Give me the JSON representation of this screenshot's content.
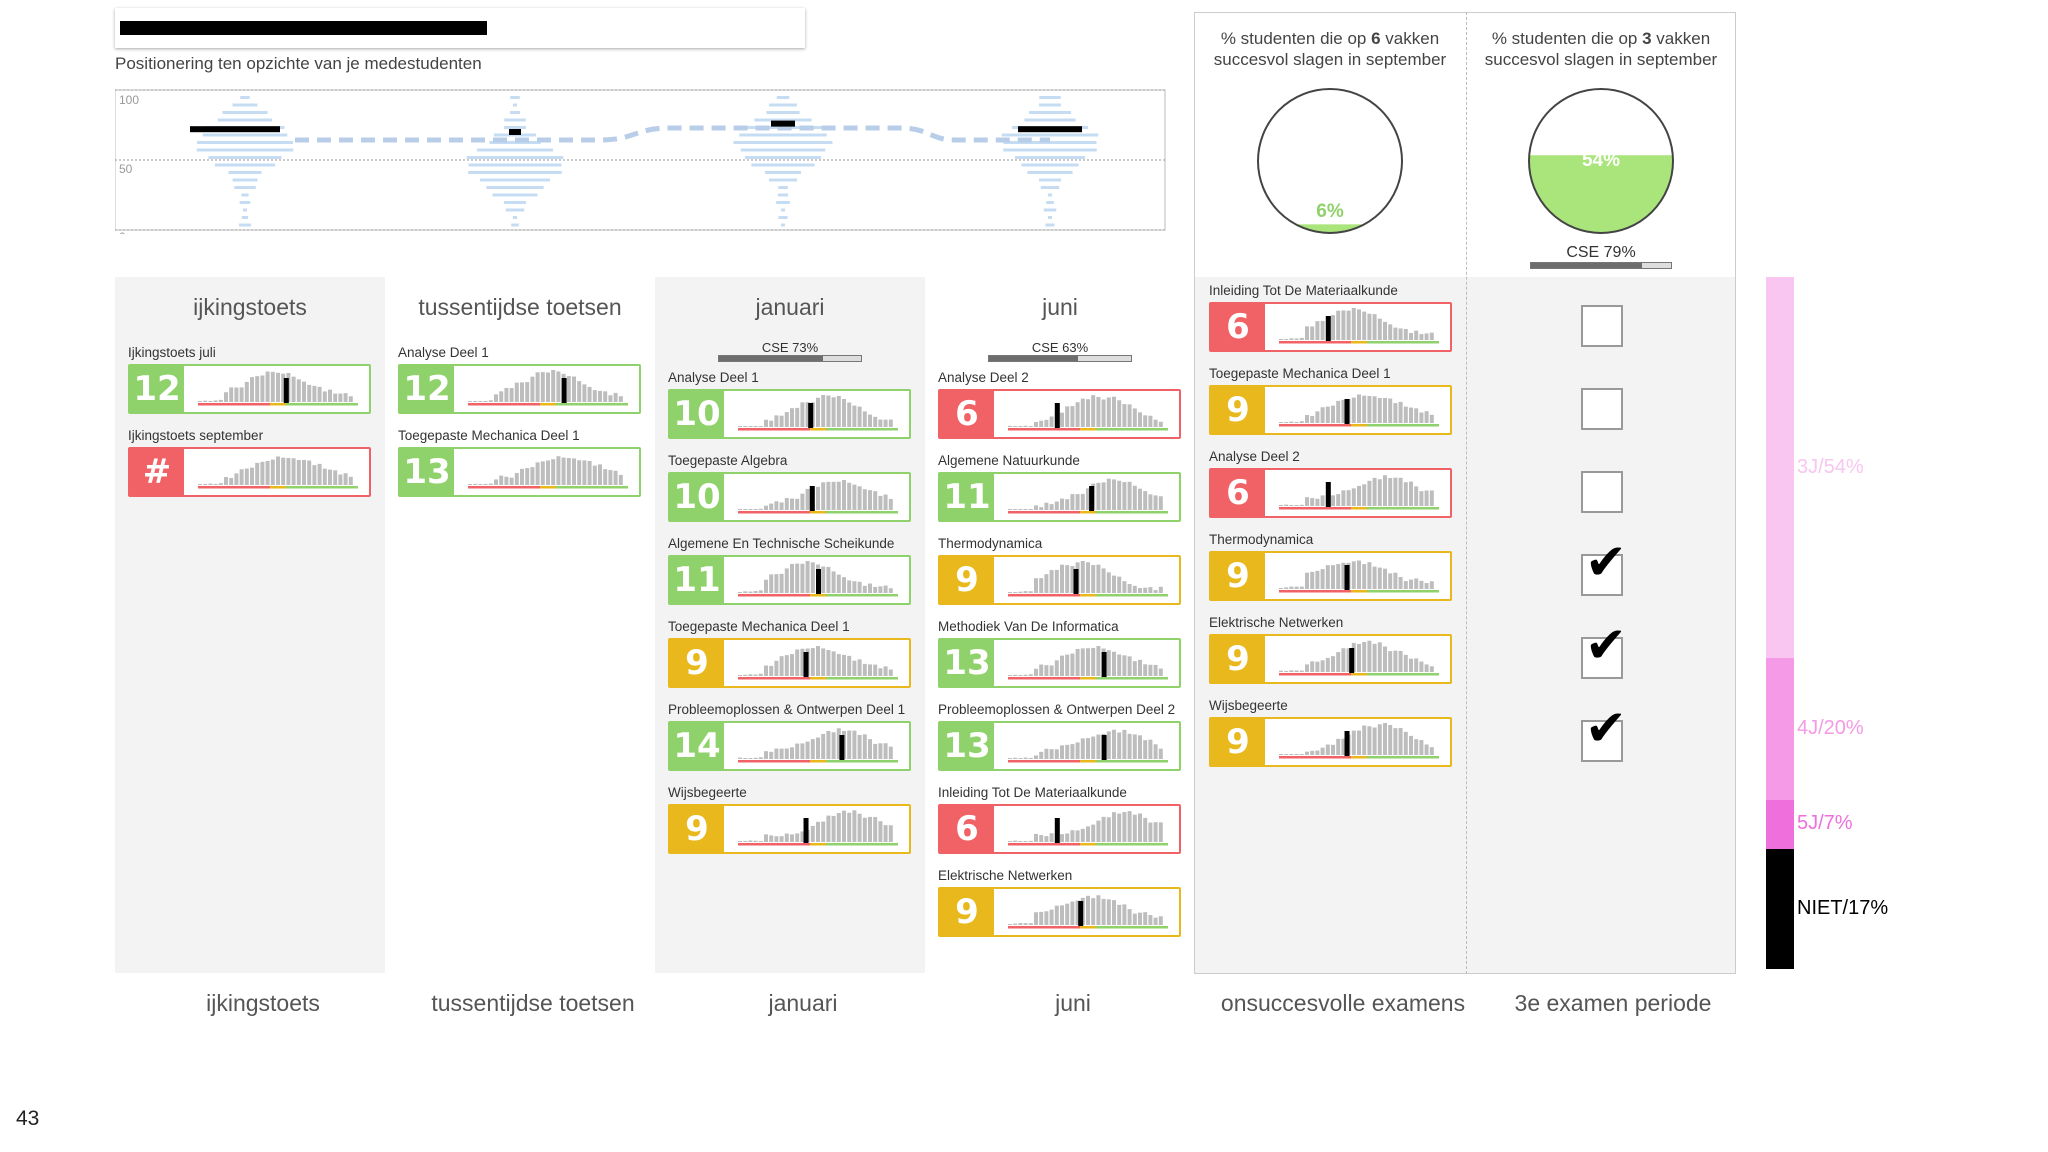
{
  "header": {
    "subtitle": "Positionering ten opzichte van je medestudenten"
  },
  "position_chart": {
    "axis_labels": [
      "100",
      "50",
      "0"
    ],
    "markers": [
      72,
      70,
      76,
      72
    ]
  },
  "columns": [
    {
      "id": "ijkingstoets",
      "title": "ijkingstoets",
      "footer": "ijkingstoets",
      "cse": null,
      "items": [
        {
          "label": "Ijkingstoets juli",
          "grade": "12",
          "status": "green",
          "marker": 0.55
        },
        {
          "label": "Ijkingstoets september",
          "grade": "#",
          "status": "red",
          "marker": null
        }
      ]
    },
    {
      "id": "tussentijdse",
      "title": "tussentijdse toetsen",
      "footer": "tussentijdse toetsen",
      "cse": null,
      "items": [
        {
          "label": "Analyse Deel 1",
          "grade": "12",
          "status": "green",
          "marker": 0.6
        },
        {
          "label": "Toegepaste Mechanica Deel 1",
          "grade": "13",
          "status": "green",
          "marker": null
        }
      ]
    },
    {
      "id": "januari",
      "title": "januari",
      "footer": "januari",
      "cse": {
        "label": "CSE 73%",
        "value": 73
      },
      "items": [
        {
          "label": "Analyse Deel 1",
          "grade": "10",
          "status": "green",
          "marker": 0.45
        },
        {
          "label": "Toegepaste Algebra",
          "grade": "10",
          "status": "green",
          "marker": 0.46
        },
        {
          "label": "Algemene En Technische Scheikunde",
          "grade": "11",
          "status": "green",
          "marker": 0.5
        },
        {
          "label": "Toegepaste Mechanica Deel 1",
          "grade": "9",
          "status": "yellow",
          "marker": 0.42
        },
        {
          "label": "Probleemoplossen & Ontwerpen Deel 1",
          "grade": "14",
          "status": "green",
          "marker": 0.65
        },
        {
          "label": "Wijsbegeerte",
          "grade": "9",
          "status": "yellow",
          "marker": 0.42
        }
      ]
    },
    {
      "id": "juni",
      "title": "juni",
      "footer": "juni",
      "cse": {
        "label": "CSE 63%",
        "value": 63
      },
      "items": [
        {
          "label": "Analyse Deel 2",
          "grade": "6",
          "status": "red",
          "marker": 0.3
        },
        {
          "label": "Algemene Natuurkunde",
          "grade": "11",
          "status": "green",
          "marker": 0.52
        },
        {
          "label": "Thermodynamica",
          "grade": "9",
          "status": "yellow",
          "marker": 0.42
        },
        {
          "label": "Methodiek Van De Informatica",
          "grade": "13",
          "status": "green",
          "marker": 0.6
        },
        {
          "label": "Probleemoplossen & Ontwerpen Deel 2",
          "grade": "13",
          "status": "green",
          "marker": 0.6
        },
        {
          "label": "Inleiding Tot De Materiaalkunde",
          "grade": "6",
          "status": "red",
          "marker": 0.3
        },
        {
          "label": "Elektrische Netwerken",
          "grade": "9",
          "status": "yellow",
          "marker": 0.45
        }
      ]
    }
  ],
  "onsuccesvol": {
    "footer": "onsuccesvolle examens",
    "pie_title_pre": "% studenten die op ",
    "pie_title_bold": "6",
    "pie_title_post": " vakken",
    "pie_title_line2": "succesvol slagen in september",
    "pie_value": "6%",
    "pie_fraction": 0.06,
    "items": [
      {
        "label": "Inleiding Tot De Materiaalkunde",
        "grade": "6",
        "status": "red",
        "marker": 0.3
      },
      {
        "label": "Toegepaste Mechanica Deel 1",
        "grade": "9",
        "status": "yellow",
        "marker": 0.42
      },
      {
        "label": "Analyse Deel 2",
        "grade": "6",
        "status": "red",
        "marker": 0.3
      },
      {
        "label": "Thermodynamica",
        "grade": "9",
        "status": "yellow",
        "marker": 0.42
      },
      {
        "label": "Elektrische Netwerken",
        "grade": "9",
        "status": "yellow",
        "marker": 0.45
      },
      {
        "label": "Wijsbegeerte",
        "grade": "9",
        "status": "yellow",
        "marker": 0.42
      }
    ]
  },
  "derde_periode": {
    "footer": "3e examen periode",
    "pie_title_pre": "% studenten die op ",
    "pie_title_bold": "3",
    "pie_title_post": " vakken",
    "pie_title_line2": "succesvol slagen in september",
    "pie_value": "54%",
    "pie_fraction": 0.54,
    "cse": {
      "label": "CSE 79%",
      "value": 79
    },
    "checks": [
      false,
      false,
      false,
      true,
      true,
      true
    ]
  },
  "stack": {
    "segments": [
      {
        "label": "3J/54%",
        "value": 54,
        "color": "#f8c6f0"
      },
      {
        "label": "4J/20%",
        "value": 20,
        "color": "#f49ae6"
      },
      {
        "label": "5J/7%",
        "value": 7,
        "color": "#ef6fdd"
      },
      {
        "label": "NIET/17%",
        "value": 17,
        "color": "#000000"
      }
    ]
  },
  "page_number": "43"
}
